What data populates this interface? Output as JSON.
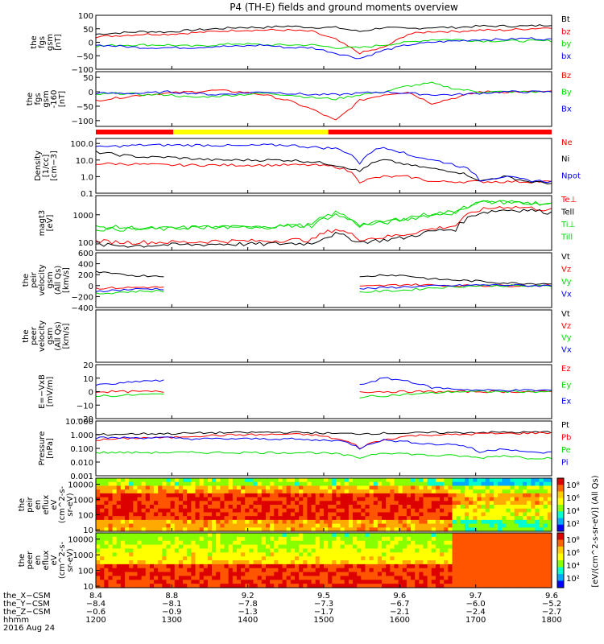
{
  "title": "P4 (TH-E) fields and ground moments overview",
  "colors": {
    "black": "#000000",
    "red": "#ff0000",
    "green": "#00dd00",
    "blue": "#0000ff",
    "yellow": "#ffff00"
  },
  "chart_data": [
    {
      "type": "line",
      "panel": "fgs-gsm-nT",
      "ylabel": [
        "the",
        "fgs",
        "gsm",
        "[nT]"
      ],
      "ylim": [
        -100,
        100
      ],
      "yticks": [
        "100",
        "50",
        "0",
        "−50",
        "−100"
      ],
      "legend": [
        {
          "name": "Bt",
          "color": "#000000"
        },
        {
          "name": "bz",
          "color": "#ff0000"
        },
        {
          "name": "by",
          "color": "#00dd00"
        },
        {
          "name": "bx",
          "color": "#0000ff"
        }
      ],
      "series": [
        {
          "name": "Bt",
          "values": [
            30,
            35,
            40,
            38,
            45,
            50,
            55,
            55,
            60,
            55,
            55,
            40,
            55,
            50,
            55,
            55,
            60,
            60,
            60,
            65
          ]
        },
        {
          "name": "bz",
          "values": [
            20,
            25,
            30,
            30,
            35,
            40,
            45,
            45,
            45,
            40,
            10,
            -40,
            -20,
            30,
            40,
            40,
            45,
            45,
            50,
            55
          ]
        },
        {
          "name": "by",
          "values": [
            -15,
            -10,
            -10,
            -10,
            -15,
            -10,
            -5,
            -10,
            -10,
            -10,
            -20,
            -20,
            -10,
            0,
            10,
            10,
            5,
            5,
            5,
            5
          ]
        },
        {
          "name": "bx",
          "values": [
            -10,
            -15,
            -20,
            -20,
            -20,
            -15,
            -15,
            -10,
            -20,
            -20,
            -40,
            -60,
            -30,
            -10,
            0,
            5,
            10,
            10,
            15,
            10
          ]
        }
      ]
    },
    {
      "type": "line",
      "panel": "fgs-gsm-nT-2",
      "ylabel": [
        "the",
        "fgs",
        "gsm",
        "-160",
        "[nT]"
      ],
      "ylim": [
        -120,
        70
      ],
      "yticks": [
        "50",
        "0",
        "−50",
        "−100"
      ],
      "legend": [
        {
          "name": "Bz",
          "color": "#ff0000"
        },
        {
          "name": "By",
          "color": "#00dd00"
        },
        {
          "name": "Bx",
          "color": "#0000ff"
        }
      ],
      "series": [
        {
          "name": "Bz",
          "values": [
            -30,
            -20,
            -10,
            -5,
            0,
            5,
            0,
            -10,
            -30,
            -60,
            -100,
            -30,
            -10,
            0,
            -40,
            -20,
            0,
            0,
            0,
            0
          ]
        },
        {
          "name": "By",
          "values": [
            -10,
            -5,
            -10,
            -10,
            -20,
            -15,
            -10,
            -5,
            -10,
            -20,
            -25,
            -10,
            0,
            20,
            30,
            10,
            0,
            0,
            0,
            0
          ]
        },
        {
          "name": "Bx",
          "values": [
            -5,
            -5,
            -5,
            0,
            -5,
            -10,
            -5,
            0,
            -5,
            -10,
            -10,
            -5,
            0,
            -5,
            -10,
            -10,
            -5,
            0,
            0,
            0
          ]
        }
      ]
    },
    {
      "type": "line",
      "panel": "density",
      "ylabel": [
        "Density",
        "[1/cc]",
        "[cm−3]"
      ],
      "ylog": true,
      "ylim": [
        0.1,
        200
      ],
      "yticks": [
        "100.0",
        "10.0",
        "1.0",
        "0.1"
      ],
      "legend": [
        {
          "name": "Ne",
          "color": "#ff0000"
        },
        {
          "name": "Ni",
          "color": "#000000"
        },
        {
          "name": "Npot",
          "color": "#0000ff"
        }
      ],
      "series": [
        {
          "name": "Ne",
          "values": [
            6,
            6,
            5.5,
            5,
            5,
            5,
            5,
            5,
            5,
            5,
            4,
            0.5,
            1,
            1,
            0.5,
            0.5,
            0.5,
            0.5,
            0.5,
            0.5
          ]
        },
        {
          "name": "Ni",
          "values": [
            30,
            20,
            15,
            15,
            12,
            10,
            10,
            10,
            10,
            8,
            5,
            2,
            10,
            5,
            3,
            2,
            0.5,
            1,
            0.5,
            0.4
          ]
        },
        {
          "name": "Npot",
          "values": [
            60,
            70,
            80,
            80,
            80,
            80,
            70,
            80,
            80,
            60,
            50,
            5,
            60,
            20,
            10,
            5,
            0.6,
            1,
            0.6,
            0.5
          ]
        }
      ]
    },
    {
      "type": "line",
      "panel": "temperature",
      "ylabel": [
        "magt3",
        "[eV]"
      ],
      "ylog": true,
      "ylim": [
        50,
        5000
      ],
      "yticks": [
        "1000",
        "100"
      ],
      "legend": [
        {
          "name": "Te⊥",
          "color": "#ff0000"
        },
        {
          "name": "Tell",
          "color": "#000000"
        },
        {
          "name": "Ti⊥",
          "color": "#00dd00"
        },
        {
          "name": "Till",
          "color": "#00dd00"
        }
      ],
      "series": [
        {
          "name": "Te⊥",
          "values": [
            110,
            100,
            100,
            100,
            100,
            110,
            110,
            110,
            120,
            120,
            300,
            130,
            150,
            200,
            300,
            400,
            1500,
            2000,
            1800,
            1500
          ]
        },
        {
          "name": "Tell",
          "values": [
            80,
            75,
            75,
            80,
            80,
            85,
            85,
            85,
            90,
            90,
            200,
            100,
            120,
            150,
            250,
            300,
            1200,
            1500,
            1500,
            1200
          ]
        },
        {
          "name": "Ti⊥",
          "values": [
            300,
            300,
            300,
            300,
            350,
            350,
            350,
            350,
            400,
            400,
            1000,
            400,
            500,
            700,
            1000,
            1200,
            3000,
            3000,
            2800,
            2500
          ]
        },
        {
          "name": "Till",
          "values": [
            350,
            350,
            320,
            320,
            350,
            350,
            350,
            380,
            400,
            420,
            1200,
            450,
            550,
            800,
            1100,
            1300,
            2800,
            2900,
            2700,
            2400
          ]
        }
      ]
    },
    {
      "type": "line",
      "panel": "peir-velocity",
      "ylabel": [
        "the",
        "peir",
        "velocity",
        "gsm",
        "(All Qs)",
        "[km/s]"
      ],
      "ylim": [
        -400,
        600
      ],
      "yticks": [
        "600",
        "400",
        "200",
        "0",
        "−200",
        "−400"
      ],
      "legend": [
        {
          "name": "Vt",
          "color": "#000000"
        },
        {
          "name": "Vz",
          "color": "#ff0000"
        },
        {
          "name": "Vy",
          "color": "#00dd00"
        },
        {
          "name": "Vx",
          "color": "#0000ff"
        }
      ],
      "series": [
        {
          "name": "Vt",
          "values": [
            250,
            200,
            180,
            null,
            null,
            null,
            null,
            null,
            null,
            null,
            null,
            150,
            200,
            180,
            120,
            100,
            80,
            50,
            40,
            40
          ]
        },
        {
          "name": "Vz",
          "values": [
            -50,
            -40,
            -30,
            null,
            null,
            null,
            null,
            null,
            null,
            null,
            null,
            -20,
            0,
            20,
            10,
            0,
            0,
            0,
            0,
            0
          ]
        },
        {
          "name": "Vy",
          "values": [
            -150,
            -120,
            -100,
            null,
            null,
            null,
            null,
            null,
            null,
            null,
            null,
            -120,
            -100,
            -80,
            -40,
            -20,
            0,
            0,
            -10,
            -10
          ]
        },
        {
          "name": "Vx",
          "values": [
            -100,
            -80,
            -60,
            null,
            null,
            null,
            null,
            null,
            null,
            null,
            null,
            -60,
            -40,
            -20,
            -10,
            0,
            10,
            10,
            0,
            0
          ]
        }
      ]
    },
    {
      "type": "line",
      "panel": "peer-velocity",
      "ylabel": [
        "the",
        "peer",
        "velocity",
        "gsm",
        "(All Qs)",
        "[km/s]"
      ],
      "ylim": [
        -400,
        600
      ],
      "yticks": [],
      "legend": [
        {
          "name": "Vt",
          "color": "#000000"
        },
        {
          "name": "Vz",
          "color": "#ff0000"
        },
        {
          "name": "Vy",
          "color": "#00dd00"
        },
        {
          "name": "Vx",
          "color": "#0000ff"
        }
      ],
      "series": []
    },
    {
      "type": "line",
      "panel": "e-field",
      "ylabel": [
        "E=−VxB",
        "[mV/m]"
      ],
      "ylim": [
        -20,
        20
      ],
      "yticks": [
        "20",
        "10",
        "0",
        "−10",
        "−20"
      ],
      "legend": [
        {
          "name": "Ez",
          "color": "#ff0000"
        },
        {
          "name": "Ey",
          "color": "#00dd00"
        },
        {
          "name": "Ex",
          "color": "#0000ff"
        }
      ],
      "series": [
        {
          "name": "Ez",
          "values": [
            0,
            0,
            0,
            null,
            null,
            null,
            null,
            null,
            null,
            null,
            null,
            0,
            0,
            0,
            0,
            0,
            0,
            0,
            0,
            0
          ]
        },
        {
          "name": "Ey",
          "values": [
            -3,
            -3,
            -2,
            null,
            null,
            null,
            null,
            null,
            null,
            null,
            null,
            -4,
            -3,
            -2,
            -1,
            0,
            0,
            0,
            0,
            0
          ]
        },
        {
          "name": "Ex",
          "values": [
            5,
            6,
            8,
            null,
            null,
            null,
            null,
            null,
            null,
            null,
            null,
            5,
            10,
            8,
            3,
            2,
            1,
            1,
            1,
            1
          ]
        }
      ]
    },
    {
      "type": "line",
      "panel": "pressure",
      "ylabel": [
        "Pressure",
        "[nPa]"
      ],
      "ylog": true,
      "ylim": [
        0.001,
        10
      ],
      "yticks": [
        "10.000",
        "1.000",
        "0.100",
        "0.010",
        "0.001"
      ],
      "legend": [
        {
          "name": "Pt",
          "color": "#000000"
        },
        {
          "name": "Pb",
          "color": "#ff0000"
        },
        {
          "name": "Pe",
          "color": "#00dd00"
        },
        {
          "name": "Pi",
          "color": "#0000ff"
        }
      ],
      "series": [
        {
          "name": "Pt",
          "values": [
            1,
            1.1,
            1.2,
            1.2,
            1.3,
            1.4,
            1.4,
            1.5,
            1.5,
            1.4,
            1.2,
            1.2,
            1.3,
            1.3,
            1.4,
            1.4,
            1.5,
            1.5,
            1.5,
            1.6
          ]
        },
        {
          "name": "Pb",
          "values": [
            0.4,
            0.5,
            0.6,
            0.6,
            0.8,
            0.9,
            1,
            1,
            1.1,
            1,
            0.5,
            0.1,
            0.4,
            0.8,
            1,
            1,
            1.2,
            1.2,
            1.3,
            1.4
          ]
        },
        {
          "name": "Pe",
          "values": [
            0.05,
            0.05,
            0.05,
            0.05,
            0.05,
            0.05,
            0.05,
            0.05,
            0.05,
            0.05,
            0.04,
            0.02,
            0.05,
            0.04,
            0.03,
            0.03,
            0.02,
            0.03,
            0.02,
            0.02
          ]
        },
        {
          "name": "Pi",
          "values": [
            0.6,
            0.6,
            0.6,
            0.6,
            0.5,
            0.5,
            0.5,
            0.5,
            0.5,
            0.4,
            0.4,
            0.1,
            0.4,
            0.3,
            0.2,
            0.2,
            0.05,
            0.1,
            0.05,
            0.05
          ]
        }
      ]
    },
    {
      "type": "heatmap",
      "panel": "peir-eflux",
      "ylabel": [
        "the",
        "peir",
        "en",
        "eflux",
        "eV",
        "(cm^2-s-",
        "sr-eV)"
      ],
      "ylog": true,
      "ylim": [
        8,
        25000
      ],
      "yticks": [
        "10000",
        "1000",
        "100",
        "10"
      ]
    },
    {
      "type": "heatmap",
      "panel": "peer-eflux",
      "ylabel": [
        "the",
        "peer",
        "en",
        "eflux",
        "eV",
        "(cm^2-s-",
        "sr-eV)"
      ],
      "ylog": true,
      "ylim": [
        8,
        25000
      ],
      "yticks": [
        "10000",
        "1000",
        "100",
        "10"
      ]
    }
  ],
  "colorbar": {
    "labels": [
      "10⁸",
      "10⁶",
      "10⁴",
      "10²",
      "10⁸",
      "10⁶",
      "10⁴",
      "10²"
    ],
    "unit": "[eV/(cm^2-s-sr-eV)] (All Qs)"
  },
  "footer": {
    "rows": [
      {
        "label": "the_X−CSM",
        "values": [
          "8.4",
          "8.8",
          "9.2",
          "9.5",
          "9.6",
          "9.7",
          "9.6"
        ]
      },
      {
        "label": "the_Y−CSM",
        "values": [
          "−8.4",
          "−8.1",
          "−7.8",
          "−7.3",
          "−6.7",
          "−6.0",
          "−5.2"
        ]
      },
      {
        "label": "the_Z−CSM",
        "values": [
          "−0.6",
          "−0.9",
          "−1.3",
          "−1.7",
          "−2.1",
          "−2.4",
          "−2.7"
        ]
      },
      {
        "label": "hhmm",
        "values": [
          "1200",
          "1300",
          "1400",
          "1500",
          "1600",
          "1700",
          "1800"
        ]
      }
    ],
    "date": "2016 Aug 24"
  },
  "mode_bar": [
    {
      "color": "#ff0000",
      "from": 0,
      "to": 0.17
    },
    {
      "color": "#ffff00",
      "from": 0.17,
      "to": 0.51
    },
    {
      "color": "#ff0000",
      "from": 0.51,
      "to": 1
    }
  ]
}
